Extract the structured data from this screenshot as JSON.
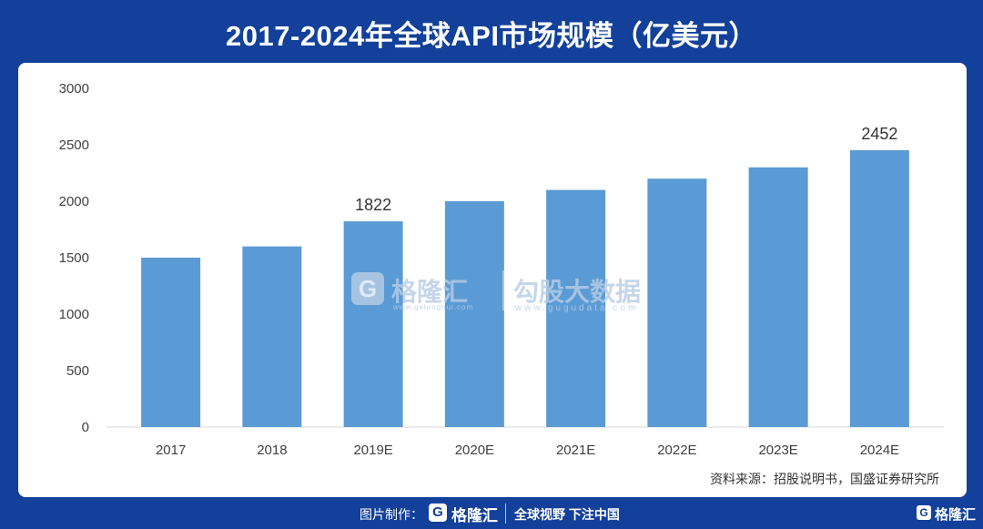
{
  "header": {
    "title": "2017-2024年全球API市场规模（亿美元）"
  },
  "chart_data": {
    "type": "bar",
    "categories": [
      "2017",
      "2018",
      "2019E",
      "2020E",
      "2021E",
      "2022E",
      "2023E",
      "2024E"
    ],
    "values": [
      1500,
      1600,
      1822,
      2000,
      2100,
      2200,
      2300,
      2452
    ],
    "data_labels": [
      null,
      null,
      "1822",
      null,
      null,
      null,
      null,
      "2452"
    ],
    "ylim": [
      0,
      3000
    ],
    "yticks": [
      "0",
      "500",
      "1000",
      "1500",
      "2000",
      "2500",
      "3000"
    ],
    "bar_color": "#5b9bd5",
    "grid": false,
    "legend": "none"
  },
  "source_note": "资料来源：招股说明书，国盛证券研究所",
  "watermark": {
    "logo_letter": "G",
    "brand": "格隆汇",
    "secondary": "勾股大数据",
    "url_primary": "www.gelonghui.com",
    "url_secondary": "www.gugudata.com"
  },
  "footer": {
    "made_by_label": "图片制作：",
    "logo_letter": "G",
    "brand": "格隆汇",
    "slogan": "全球视野 下注中国",
    "right_logo_letter": "G",
    "right_brand": "格隆汇"
  },
  "colors": {
    "background": "#12409a",
    "card": "#ffffff",
    "bar": "#5b9bd5",
    "text": "#333333"
  }
}
